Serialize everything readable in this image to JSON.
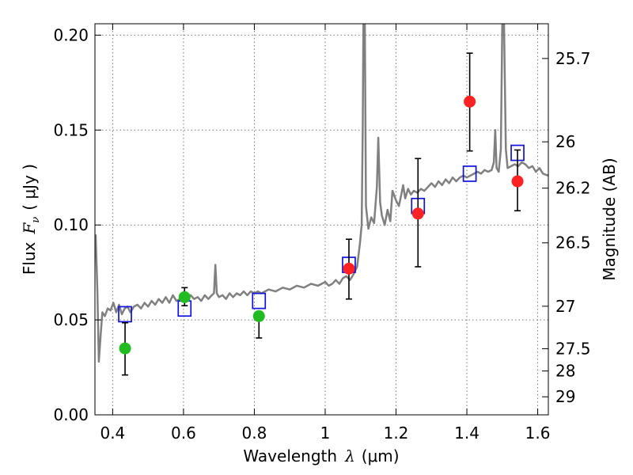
{
  "chart_data": {
    "type": "scatter",
    "xlabel_text": "Wavelength",
    "xlabel_symbol": "λ",
    "xlabel_unit": "(μm)",
    "ylabel_text": "Flux",
    "ylabel_symbol": "F",
    "ylabel_subscript": "ν",
    "ylabel_unit": "( μJy )",
    "y2label": "Magnitude (AB)",
    "xlim": [
      0.35,
      1.63
    ],
    "ylim": [
      0.0,
      0.206
    ],
    "grid": true,
    "x_ticks": [
      {
        "value": 0.4,
        "label": "0.4"
      },
      {
        "value": 0.6,
        "label": "0.6"
      },
      {
        "value": 0.8,
        "label": "0.8"
      },
      {
        "value": 1.0,
        "label": "1"
      },
      {
        "value": 1.2,
        "label": "1.2"
      },
      {
        "value": 1.4,
        "label": "1.4"
      },
      {
        "value": 1.6,
        "label": "1.6"
      }
    ],
    "y_ticks": [
      {
        "value": 0.0,
        "label": "0.00"
      },
      {
        "value": 0.05,
        "label": "0.05"
      },
      {
        "value": 0.1,
        "label": "0.10"
      },
      {
        "value": 0.15,
        "label": "0.15"
      },
      {
        "value": 0.2,
        "label": "0.20"
      }
    ],
    "y2_ticks": [
      {
        "mag": 25.7,
        "label": "25.7"
      },
      {
        "mag": 26.0,
        "label": "26"
      },
      {
        "mag": 26.2,
        "label": "26.2"
      },
      {
        "mag": 26.5,
        "label": "26.5"
      },
      {
        "mag": 27.0,
        "label": "27"
      },
      {
        "mag": 27.5,
        "label": "27.5"
      },
      {
        "mag": 28.0,
        "label": "28"
      },
      {
        "mag": 29.0,
        "label": "29"
      }
    ],
    "y2_tick_flux": [
      0.1877,
      0.1438,
      0.1194,
      0.0906,
      0.0572,
      0.0348,
      0.0231,
      0.0095
    ],
    "series": [
      {
        "kind": "line",
        "color": "#808080",
        "points": [
          [
            0.352,
            0.095
          ],
          [
            0.357,
            0.065
          ],
          [
            0.361,
            0.028
          ],
          [
            0.366,
            0.042
          ],
          [
            0.371,
            0.054
          ],
          [
            0.378,
            0.052
          ],
          [
            0.386,
            0.056
          ],
          [
            0.394,
            0.055
          ],
          [
            0.402,
            0.059
          ],
          [
            0.41,
            0.054
          ],
          [
            0.418,
            0.058
          ],
          [
            0.426,
            0.053
          ],
          [
            0.434,
            0.056
          ],
          [
            0.442,
            0.057
          ],
          [
            0.45,
            0.054
          ],
          [
            0.46,
            0.057
          ],
          [
            0.47,
            0.058
          ],
          [
            0.48,
            0.056
          ],
          [
            0.49,
            0.059
          ],
          [
            0.5,
            0.057
          ],
          [
            0.51,
            0.06
          ],
          [
            0.52,
            0.058
          ],
          [
            0.53,
            0.061
          ],
          [
            0.54,
            0.059
          ],
          [
            0.55,
            0.062
          ],
          [
            0.56,
            0.059
          ],
          [
            0.57,
            0.063
          ],
          [
            0.58,
            0.06
          ],
          [
            0.59,
            0.061
          ],
          [
            0.6,
            0.062
          ],
          [
            0.61,
            0.06
          ],
          [
            0.62,
            0.063
          ],
          [
            0.63,
            0.061
          ],
          [
            0.64,
            0.062
          ],
          [
            0.65,
            0.06
          ],
          [
            0.66,
            0.063
          ],
          [
            0.67,
            0.061
          ],
          [
            0.68,
            0.063
          ],
          [
            0.686,
            0.064
          ],
          [
            0.69,
            0.079
          ],
          [
            0.694,
            0.064
          ],
          [
            0.7,
            0.062
          ],
          [
            0.71,
            0.063
          ],
          [
            0.72,
            0.061
          ],
          [
            0.73,
            0.064
          ],
          [
            0.74,
            0.062
          ],
          [
            0.75,
            0.064
          ],
          [
            0.76,
            0.063
          ],
          [
            0.77,
            0.065
          ],
          [
            0.78,
            0.063
          ],
          [
            0.79,
            0.065
          ],
          [
            0.8,
            0.064
          ],
          [
            0.81,
            0.065
          ],
          [
            0.82,
            0.064
          ],
          [
            0.84,
            0.066
          ],
          [
            0.86,
            0.065
          ],
          [
            0.88,
            0.067
          ],
          [
            0.9,
            0.066
          ],
          [
            0.92,
            0.068
          ],
          [
            0.94,
            0.067
          ],
          [
            0.96,
            0.069
          ],
          [
            0.98,
            0.068
          ],
          [
            1.0,
            0.07
          ],
          [
            1.01,
            0.068
          ],
          [
            1.02,
            0.069
          ],
          [
            1.03,
            0.071
          ],
          [
            1.04,
            0.069
          ],
          [
            1.05,
            0.072
          ],
          [
            1.06,
            0.073
          ],
          [
            1.07,
            0.071
          ],
          [
            1.08,
            0.074
          ],
          [
            1.09,
            0.078
          ],
          [
            1.098,
            0.09
          ],
          [
            1.103,
            0.1
          ],
          [
            1.106,
            0.15
          ],
          [
            1.108,
            0.206
          ],
          [
            1.112,
            0.206
          ],
          [
            1.115,
            0.11
          ],
          [
            1.122,
            0.098
          ],
          [
            1.13,
            0.104
          ],
          [
            1.138,
            0.101
          ],
          [
            1.146,
            0.12
          ],
          [
            1.15,
            0.146
          ],
          [
            1.155,
            0.112
          ],
          [
            1.16,
            0.105
          ],
          [
            1.168,
            0.1
          ],
          [
            1.176,
            0.108
          ],
          [
            1.184,
            0.102
          ],
          [
            1.19,
            0.118
          ],
          [
            1.2,
            0.113
          ],
          [
            1.208,
            0.11
          ],
          [
            1.215,
            0.116
          ],
          [
            1.22,
            0.121
          ],
          [
            1.226,
            0.114
          ],
          [
            1.234,
            0.119
          ],
          [
            1.242,
            0.116
          ],
          [
            1.25,
            0.118
          ],
          [
            1.26,
            0.117
          ],
          [
            1.27,
            0.119
          ],
          [
            1.28,
            0.118
          ],
          [
            1.29,
            0.12
          ],
          [
            1.3,
            0.122
          ],
          [
            1.31,
            0.12
          ],
          [
            1.32,
            0.123
          ],
          [
            1.33,
            0.121
          ],
          [
            1.34,
            0.124
          ],
          [
            1.35,
            0.122
          ],
          [
            1.36,
            0.125
          ],
          [
            1.37,
            0.123
          ],
          [
            1.38,
            0.125
          ],
          [
            1.39,
            0.126
          ],
          [
            1.4,
            0.125
          ],
          [
            1.41,
            0.126
          ],
          [
            1.42,
            0.127
          ],
          [
            1.43,
            0.128
          ],
          [
            1.44,
            0.127
          ],
          [
            1.45,
            0.129
          ],
          [
            1.46,
            0.128
          ],
          [
            1.47,
            0.129
          ],
          [
            1.476,
            0.133
          ],
          [
            1.48,
            0.15
          ],
          [
            1.484,
            0.13
          ],
          [
            1.49,
            0.128
          ],
          [
            1.496,
            0.14
          ],
          [
            1.5,
            0.206
          ],
          [
            1.505,
            0.206
          ],
          [
            1.51,
            0.14
          ],
          [
            1.515,
            0.13
          ],
          [
            1.525,
            0.131
          ],
          [
            1.535,
            0.132
          ],
          [
            1.545,
            0.131
          ],
          [
            1.555,
            0.133
          ],
          [
            1.565,
            0.132
          ],
          [
            1.575,
            0.13
          ],
          [
            1.585,
            0.131
          ],
          [
            1.595,
            0.128
          ],
          [
            1.605,
            0.13
          ],
          [
            1.615,
            0.127
          ],
          [
            1.63,
            0.126
          ]
        ]
      },
      {
        "kind": "points",
        "marker": "circle",
        "color": "#22bb22",
        "points": [
          {
            "x": 0.435,
            "y": 0.035,
            "err_low": 0.014,
            "err_high": 0.0135
          },
          {
            "x": 0.603,
            "y": 0.062,
            "err_low": 0.0045,
            "err_high": 0.005
          },
          {
            "x": 0.813,
            "y": 0.052,
            "err_low": 0.0115,
            "err_high": 0.0
          }
        ]
      },
      {
        "kind": "points",
        "marker": "circle",
        "color": "#ff2222",
        "points": [
          {
            "x": 1.067,
            "y": 0.077,
            "err_low": 0.016,
            "err_high": 0.0155
          },
          {
            "x": 1.262,
            "y": 0.106,
            "err_low": 0.028,
            "err_high": 0.029
          },
          {
            "x": 1.408,
            "y": 0.165,
            "err_low": 0.026,
            "err_high": 0.0255
          },
          {
            "x": 1.543,
            "y": 0.123,
            "err_low": 0.0155,
            "err_high": 0.0165
          }
        ]
      },
      {
        "kind": "points",
        "marker": "square",
        "color": "#1111dd",
        "points": [
          {
            "x": 0.435,
            "y": 0.053
          },
          {
            "x": 0.603,
            "y": 0.056
          },
          {
            "x": 0.813,
            "y": 0.06
          },
          {
            "x": 1.067,
            "y": 0.079
          },
          {
            "x": 1.262,
            "y": 0.11
          },
          {
            "x": 1.408,
            "y": 0.127
          },
          {
            "x": 1.543,
            "y": 0.138
          }
        ]
      }
    ]
  }
}
